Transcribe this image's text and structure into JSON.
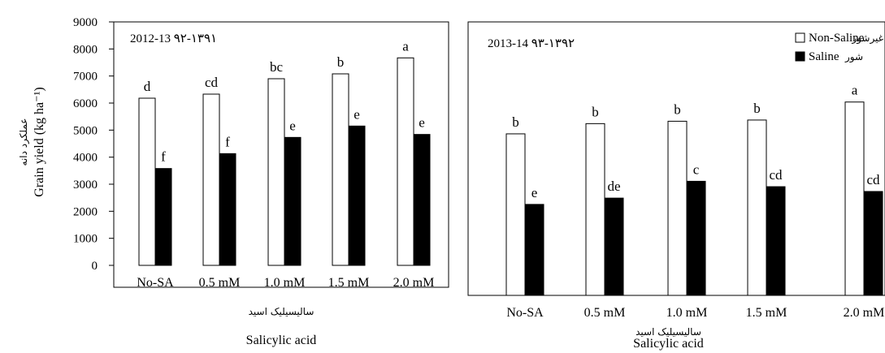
{
  "colors": {
    "non_saline": "#ffffff",
    "saline": "#000000",
    "frame": "#000000"
  },
  "chart_data": [
    {
      "type": "bar",
      "panel_title": "2012-13 ۹۲-۱۳۹۱",
      "categories": [
        "No-SA",
        "0.5 mM",
        "1.0 mM",
        "1.5 mM",
        "2.0 mM"
      ],
      "ylabel": "Grain yield  (kg ha⁻¹)",
      "ylabel_fa": "عملکرد دانه",
      "xlabel": "Salicylic acid",
      "xlabel_fa": "سالیسیلیک اسید",
      "ylim": [
        0,
        9000
      ],
      "yticks": [
        0,
        1000,
        2000,
        3000,
        4000,
        5000,
        6000,
        7000,
        8000,
        9000
      ],
      "series": [
        {
          "values": [
            6180,
            6330,
            6900,
            7080,
            7670
          ],
          "letters": [
            "d",
            "cd",
            "bc",
            "b",
            "a"
          ]
        },
        {
          "values": [
            3580,
            4130,
            4730,
            5150,
            4840
          ],
          "letters": [
            "f",
            "f",
            "e",
            "e",
            "e"
          ]
        }
      ]
    },
    {
      "type": "bar",
      "panel_title": "2013-14 ۹۳-۱۳۹۲",
      "categories": [
        "No-SA",
        "0.5 mM",
        "1.0 mM",
        "1.5 mM",
        "2.0 mM"
      ],
      "xlabel": "Salicylic acid",
      "xlabel_fa": "سالیسیلیک اسید",
      "ylim": [
        0,
        9000
      ],
      "legend": {
        "position": "top-right",
        "non_saline": "Non-Saline",
        "non_saline_fa": "غیرشور",
        "saline": "Saline",
        "saline_fa": "شور"
      },
      "series": [
        {
          "values": [
            5380,
            5720,
            5800,
            5840,
            6440
          ],
          "letters": [
            "b",
            "b",
            "b",
            "b",
            "a"
          ]
        },
        {
          "values": [
            3030,
            3240,
            3800,
            3620,
            3460
          ],
          "letters": [
            "e",
            "de",
            "c",
            "cd",
            "cd"
          ]
        }
      ]
    }
  ]
}
